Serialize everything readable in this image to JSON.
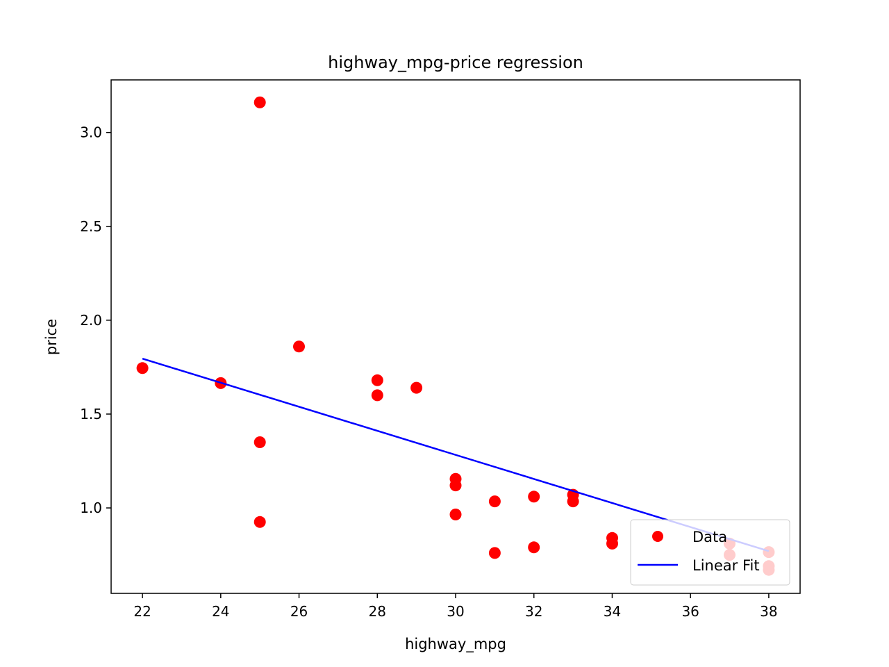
{
  "chart_data": {
    "type": "scatter",
    "title": "highway_mpg-price regression",
    "xlabel": "highway_mpg",
    "ylabel": "price",
    "xlim": [
      21.2,
      38.8
    ],
    "ylim": [
      0.545,
      3.28
    ],
    "xticks": [
      22,
      24,
      26,
      28,
      30,
      32,
      34,
      36,
      38
    ],
    "xtick_labels": [
      "22",
      "24",
      "26",
      "28",
      "30",
      "32",
      "34",
      "36",
      "38"
    ],
    "yticks": [
      1.0,
      1.5,
      2.0,
      2.5,
      3.0
    ],
    "ytick_labels": [
      "1.0",
      "1.5",
      "2.0",
      "2.5",
      "3.0"
    ],
    "grid": false,
    "legend": {
      "position": "lower-right",
      "entries": [
        {
          "label": "Data",
          "marker": "circle",
          "color": "#ff0000"
        },
        {
          "label": "Linear Fit",
          "marker": "line",
          "color": "#0000ff"
        }
      ]
    },
    "series": [
      {
        "name": "Data",
        "kind": "scatter",
        "color": "#ff0000",
        "points": [
          [
            22,
            1.745
          ],
          [
            24,
            1.665
          ],
          [
            25,
            3.16
          ],
          [
            25,
            1.35
          ],
          [
            25,
            0.925
          ],
          [
            26,
            1.86
          ],
          [
            28,
            1.68
          ],
          [
            28,
            1.6
          ],
          [
            29,
            1.64
          ],
          [
            30,
            1.155
          ],
          [
            30,
            1.12
          ],
          [
            30,
            0.965
          ],
          [
            31,
            1.035
          ],
          [
            31,
            0.76
          ],
          [
            32,
            1.06
          ],
          [
            32,
            0.79
          ],
          [
            33,
            1.07
          ],
          [
            33,
            1.035
          ],
          [
            34,
            0.84
          ],
          [
            34,
            0.81
          ],
          [
            37,
            0.81
          ],
          [
            37,
            0.75
          ],
          [
            38,
            0.765
          ],
          [
            38,
            0.69
          ],
          [
            38,
            0.67
          ]
        ]
      },
      {
        "name": "Linear Fit",
        "kind": "line",
        "color": "#0000ff",
        "points": [
          [
            22,
            1.795
          ],
          [
            38,
            0.77
          ]
        ]
      }
    ]
  }
}
